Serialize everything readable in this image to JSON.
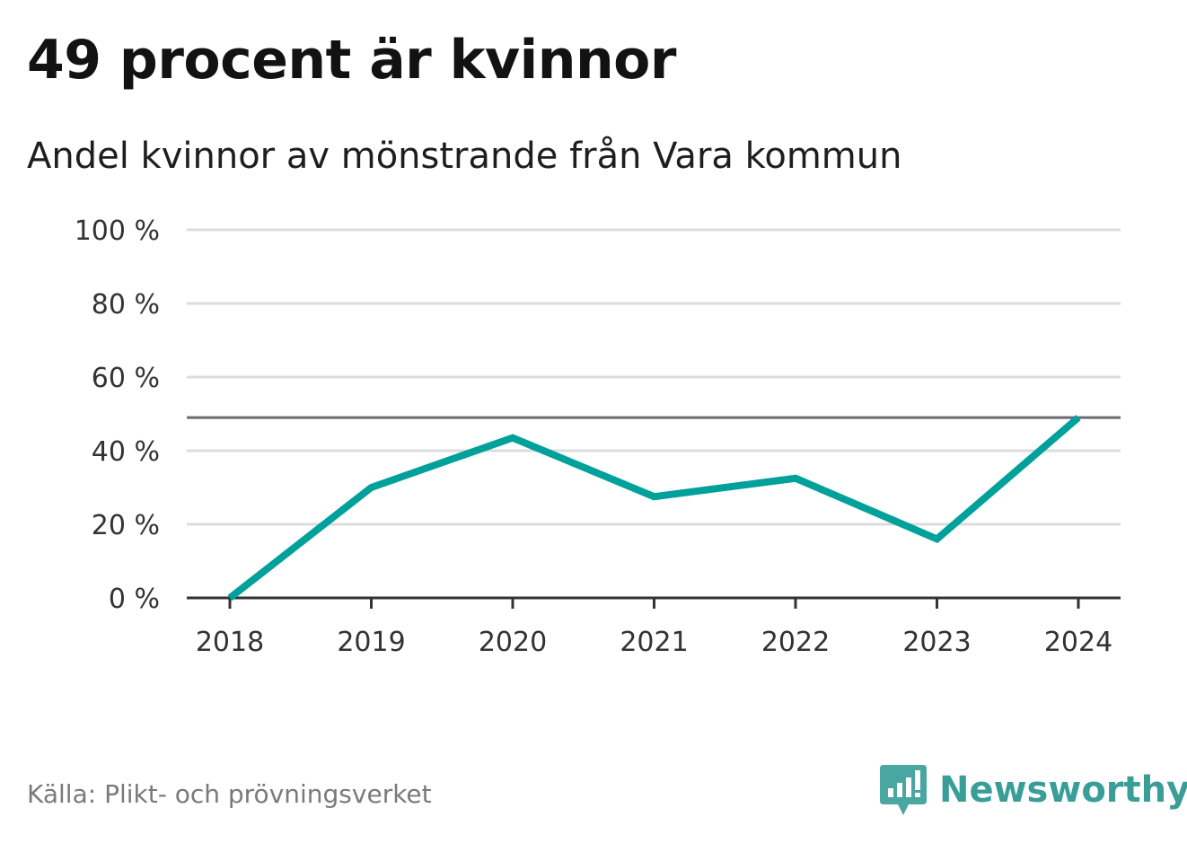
{
  "header": {
    "title": "49 procent är kvinnor",
    "subtitle": "Andel kvinnor av mönstrande från Vara kommun"
  },
  "footer": {
    "source": "Källa: Plikt- och prövningsverket",
    "brand": "Newsworthy",
    "logo_icon": "newsworthy-bar-chart-logo-icon"
  },
  "colors": {
    "line": "#00a19a",
    "reference_line": "#6a6a72",
    "grid": "#dcdcdc",
    "axis": "#333333",
    "brand": "#3a9e98"
  },
  "chart_data": {
    "type": "line",
    "x": [
      "2018",
      "2019",
      "2020",
      "2021",
      "2022",
      "2023",
      "2024"
    ],
    "series": [
      {
        "values": [
          0,
          30,
          43.5,
          27.5,
          32.5,
          16,
          49
        ]
      }
    ],
    "reference_line": 49,
    "ylim": [
      0,
      100
    ],
    "yticks": [
      0,
      20,
      40,
      60,
      80,
      100
    ],
    "ytick_labels": [
      "0 %",
      "20 %",
      "40 %",
      "60 %",
      "80 %",
      "100 %"
    ],
    "grid": true,
    "legend": "none"
  }
}
